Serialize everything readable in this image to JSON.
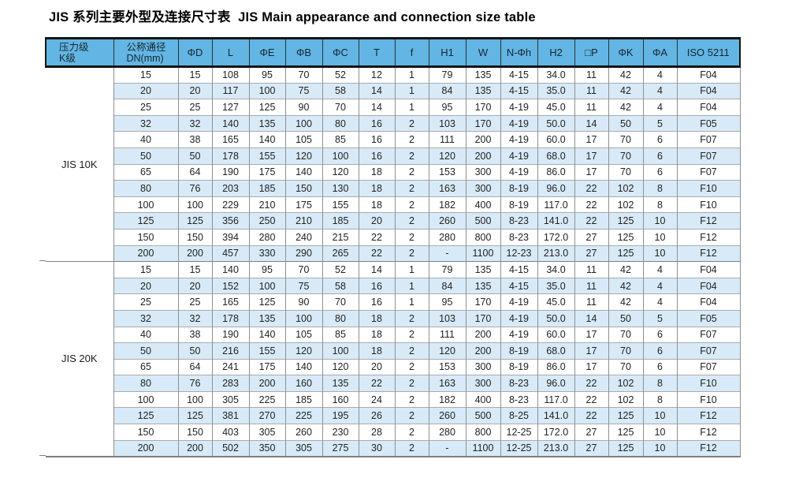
{
  "title": "JIS 系列主要外型及连接尺寸表  JIS Main appearance and connection size table",
  "colors": {
    "header_bg": "#63B5E3",
    "row_alt_bg": "#D8EAF8",
    "row_bg": "#FFFFFF",
    "header_border": "#141414",
    "grid_border": "#909090",
    "section_border": "#7F7F7F"
  },
  "table": {
    "headers": [
      {
        "id": "pressure-class",
        "lines": [
          "压力级",
          "K级"
        ]
      },
      {
        "id": "nominal-diameter",
        "lines": [
          "公称通径",
          "DN(mm)"
        ]
      },
      {
        "id": "phi-d",
        "lines": [
          "ΦD"
        ]
      },
      {
        "id": "l",
        "lines": [
          "L"
        ]
      },
      {
        "id": "phi-e",
        "lines": [
          "ΦE"
        ]
      },
      {
        "id": "phi-b",
        "lines": [
          "ΦB"
        ]
      },
      {
        "id": "phi-c",
        "lines": [
          "ΦC"
        ]
      },
      {
        "id": "t",
        "lines": [
          "T"
        ]
      },
      {
        "id": "f",
        "lines": [
          "f"
        ]
      },
      {
        "id": "h1",
        "lines": [
          "H1"
        ]
      },
      {
        "id": "w",
        "lines": [
          "W"
        ]
      },
      {
        "id": "n-phi-h",
        "lines": [
          "N-Φh"
        ]
      },
      {
        "id": "h2",
        "lines": [
          "H2"
        ]
      },
      {
        "id": "square-p",
        "lines": [
          "□P"
        ]
      },
      {
        "id": "phi-k",
        "lines": [
          "ΦK"
        ]
      },
      {
        "id": "phi-a",
        "lines": [
          "ΦA"
        ]
      },
      {
        "id": "iso-5211",
        "lines": [
          "ISO 5211"
        ]
      }
    ],
    "groups": [
      {
        "label": "JIS 10K",
        "rows": [
          [
            "15",
            "15",
            "108",
            "95",
            "70",
            "52",
            "12",
            "1",
            "79",
            "135",
            "4-15",
            "34.0",
            "11",
            "42",
            "4",
            "F04"
          ],
          [
            "20",
            "20",
            "117",
            "100",
            "75",
            "58",
            "14",
            "1",
            "84",
            "135",
            "4-15",
            "35.0",
            "11",
            "42",
            "4",
            "F04"
          ],
          [
            "25",
            "25",
            "127",
            "125",
            "90",
            "70",
            "14",
            "1",
            "95",
            "170",
            "4-19",
            "45.0",
            "11",
            "42",
            "4",
            "F04"
          ],
          [
            "32",
            "32",
            "140",
            "135",
            "100",
            "80",
            "16",
            "2",
            "103",
            "170",
            "4-19",
            "50.0",
            "14",
            "50",
            "5",
            "F05"
          ],
          [
            "40",
            "38",
            "165",
            "140",
            "105",
            "85",
            "16",
            "2",
            "111",
            "200",
            "4-19",
            "60.0",
            "17",
            "70",
            "6",
            "F07"
          ],
          [
            "50",
            "50",
            "178",
            "155",
            "120",
            "100",
            "16",
            "2",
            "120",
            "200",
            "4-19",
            "68.0",
            "17",
            "70",
            "6",
            "F07"
          ],
          [
            "65",
            "64",
            "190",
            "175",
            "140",
            "120",
            "18",
            "2",
            "153",
            "300",
            "4-19",
            "86.0",
            "17",
            "70",
            "6",
            "F07"
          ],
          [
            "80",
            "76",
            "203",
            "185",
            "150",
            "130",
            "18",
            "2",
            "163",
            "300",
            "8-19",
            "96.0",
            "22",
            "102",
            "8",
            "F10"
          ],
          [
            "100",
            "100",
            "229",
            "210",
            "175",
            "155",
            "18",
            "2",
            "182",
            "400",
            "8-19",
            "117.0",
            "22",
            "102",
            "8",
            "F10"
          ],
          [
            "125",
            "125",
            "356",
            "250",
            "210",
            "185",
            "20",
            "2",
            "260",
            "500",
            "8-23",
            "141.0",
            "22",
            "125",
            "10",
            "F12"
          ],
          [
            "150",
            "150",
            "394",
            "280",
            "240",
            "215",
            "22",
            "2",
            "280",
            "800",
            "8-23",
            "172.0",
            "27",
            "125",
            "10",
            "F12"
          ],
          [
            "200",
            "200",
            "457",
            "330",
            "290",
            "265",
            "22",
            "2",
            "-",
            "1100",
            "12-23",
            "213.0",
            "27",
            "125",
            "10",
            "F12"
          ]
        ]
      },
      {
        "label": "JIS 20K",
        "rows": [
          [
            "15",
            "15",
            "140",
            "95",
            "70",
            "52",
            "14",
            "1",
            "79",
            "135",
            "4-15",
            "34.0",
            "11",
            "42",
            "4",
            "F04"
          ],
          [
            "20",
            "20",
            "152",
            "100",
            "75",
            "58",
            "16",
            "1",
            "84",
            "135",
            "4-15",
            "35.0",
            "11",
            "42",
            "4",
            "F04"
          ],
          [
            "25",
            "25",
            "165",
            "125",
            "90",
            "70",
            "16",
            "1",
            "95",
            "170",
            "4-19",
            "45.0",
            "11",
            "42",
            "4",
            "F04"
          ],
          [
            "32",
            "32",
            "178",
            "135",
            "100",
            "80",
            "18",
            "2",
            "103",
            "170",
            "4-19",
            "50.0",
            "14",
            "50",
            "5",
            "F05"
          ],
          [
            "40",
            "38",
            "190",
            "140",
            "105",
            "85",
            "18",
            "2",
            "111",
            "200",
            "4-19",
            "60.0",
            "17",
            "70",
            "6",
            "F07"
          ],
          [
            "50",
            "50",
            "216",
            "155",
            "120",
            "100",
            "18",
            "2",
            "120",
            "200",
            "8-19",
            "68.0",
            "17",
            "70",
            "6",
            "F07"
          ],
          [
            "65",
            "64",
            "241",
            "175",
            "140",
            "120",
            "20",
            "2",
            "153",
            "300",
            "8-19",
            "86.0",
            "17",
            "70",
            "6",
            "F07"
          ],
          [
            "80",
            "76",
            "283",
            "200",
            "160",
            "135",
            "22",
            "2",
            "163",
            "300",
            "8-23",
            "96.0",
            "22",
            "102",
            "8",
            "F10"
          ],
          [
            "100",
            "100",
            "305",
            "225",
            "185",
            "160",
            "24",
            "2",
            "182",
            "400",
            "8-23",
            "117.0",
            "22",
            "102",
            "8",
            "F10"
          ],
          [
            "125",
            "125",
            "381",
            "270",
            "225",
            "195",
            "26",
            "2",
            "260",
            "500",
            "8-25",
            "141.0",
            "22",
            "125",
            "10",
            "F12"
          ],
          [
            "150",
            "150",
            "403",
            "305",
            "260",
            "230",
            "28",
            "2",
            "280",
            "800",
            "12-25",
            "172.0",
            "27",
            "125",
            "10",
            "F12"
          ],
          [
            "200",
            "200",
            "502",
            "350",
            "305",
            "275",
            "30",
            "2",
            "-",
            "1100",
            "12-25",
            "213.0",
            "27",
            "125",
            "10",
            "F12"
          ]
        ]
      }
    ]
  }
}
